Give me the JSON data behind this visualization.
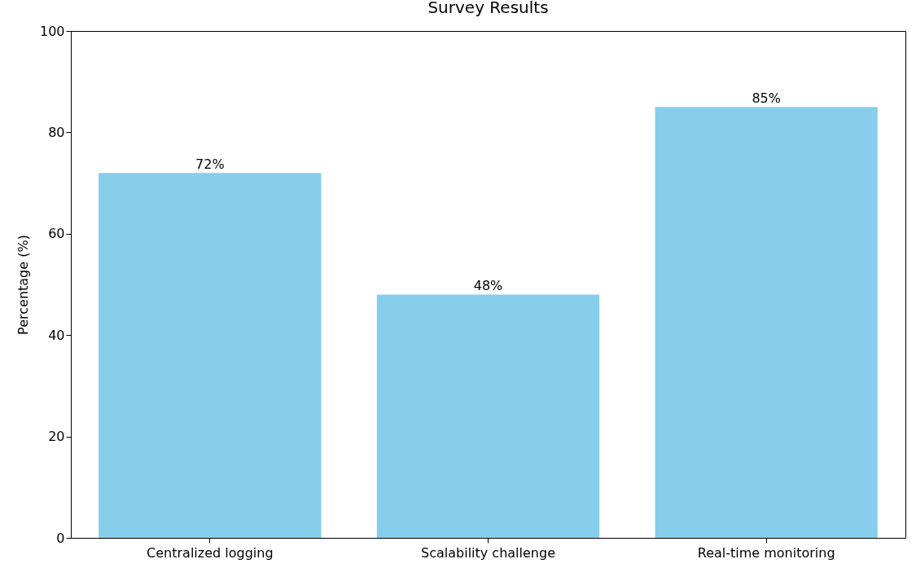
{
  "chart_data": {
    "type": "bar",
    "title": "Survey Results",
    "ylabel": "Percentage (%)",
    "categories": [
      "Centralized logging",
      "Scalability challenge",
      "Real-time monitoring"
    ],
    "values": [
      72,
      48,
      85
    ],
    "value_labels": [
      "72%",
      "48%",
      "85%"
    ],
    "color": "#87ceeb",
    "ylim": [
      0,
      100
    ],
    "yticks": [
      0,
      20,
      40,
      60,
      80,
      100
    ],
    "grid": false
  }
}
